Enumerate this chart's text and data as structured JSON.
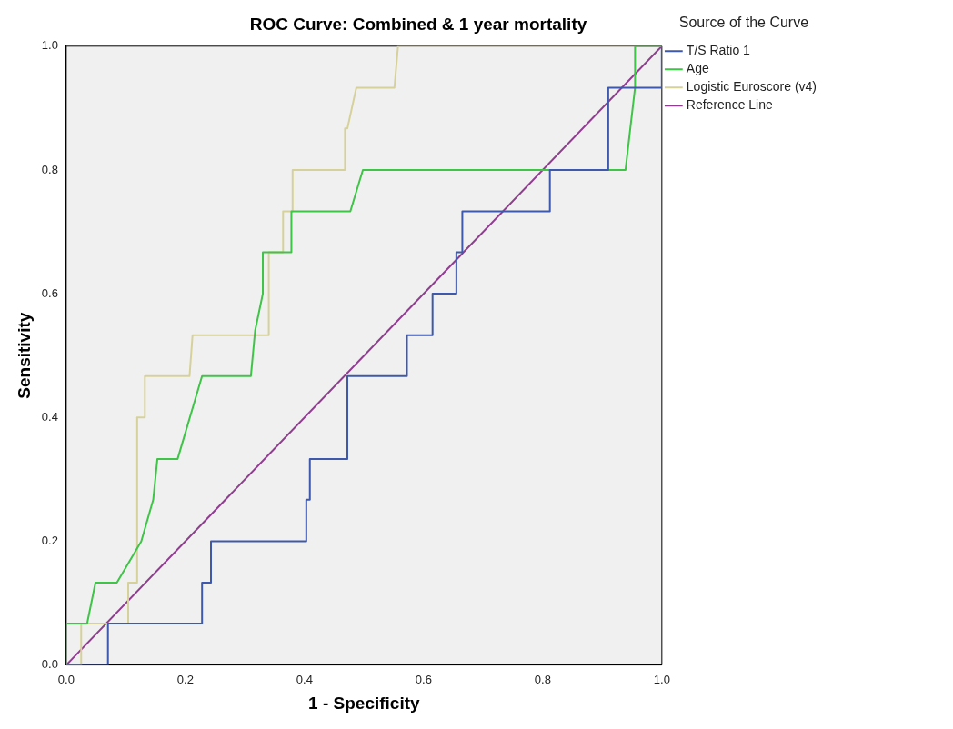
{
  "chart_data": {
    "type": "line",
    "title": "ROC Curve: Combined & 1 year mortality",
    "xlabel": "1 - Specificity",
    "ylabel": "Sensitivity",
    "legend_title": "Source of the Curve",
    "legend": "right",
    "marker": "none",
    "grid": false,
    "xlim": [
      0,
      1
    ],
    "ylim": [
      0,
      1
    ],
    "xticks": [
      {
        "value": 0,
        "label": "0.0"
      },
      {
        "value": 0.2,
        "label": "0.2"
      },
      {
        "value": 0.4,
        "label": "0.4"
      },
      {
        "value": 0.6,
        "label": "0.6"
      },
      {
        "value": 0.8,
        "label": "0.8"
      },
      {
        "value": 1,
        "label": "1.0"
      }
    ],
    "yticks": [
      {
        "value": 0,
        "label": "0.0"
      },
      {
        "value": 0.2,
        "label": "0.2"
      },
      {
        "value": 0.4,
        "label": "0.4"
      },
      {
        "value": 0.6,
        "label": "0.6"
      },
      {
        "value": 0.8,
        "label": "0.8"
      },
      {
        "value": 1,
        "label": "1.0"
      }
    ],
    "series": [
      {
        "name": "T/S Ratio 1",
        "color": "#3e58ac",
        "x": [
          0,
          0.07,
          0.07,
          0.228,
          0.228,
          0.243,
          0.243,
          0.403,
          0.403,
          0.409,
          0.409,
          0.472,
          0.472,
          0.572,
          0.572,
          0.615,
          0.615,
          0.655,
          0.655,
          0.665,
          0.665,
          0.812,
          0.812,
          0.91,
          0.91,
          1,
          1
        ],
        "values": [
          0,
          0,
          0.067,
          0.067,
          0.133,
          0.133,
          0.2,
          0.2,
          0.267,
          0.267,
          0.333,
          0.333,
          0.467,
          0.467,
          0.533,
          0.533,
          0.6,
          0.6,
          0.667,
          0.667,
          0.733,
          0.733,
          0.8,
          0.8,
          0.933,
          0.933,
          1
        ]
      },
      {
        "name": "Age",
        "color": "#3ec446",
        "x": [
          0,
          0,
          0.035,
          0.049,
          0.085,
          0.126,
          0.146,
          0.153,
          0.187,
          0.228,
          0.31,
          0.317,
          0.33,
          0.33,
          0.378,
          0.378,
          0.477,
          0.498,
          0.939,
          0.947,
          0.955,
          0.955,
          1
        ],
        "values": [
          0,
          0.067,
          0.067,
          0.133,
          0.133,
          0.2,
          0.267,
          0.333,
          0.333,
          0.467,
          0.467,
          0.54,
          0.6,
          0.667,
          0.667,
          0.733,
          0.733,
          0.8,
          0.8,
          0.867,
          0.933,
          1,
          1
        ]
      },
      {
        "name": "Logistic Euroscore (v4)",
        "color": "#d6d19a",
        "x": [
          0,
          0.025,
          0.025,
          0.104,
          0.104,
          0.119,
          0.119,
          0.132,
          0.132,
          0.207,
          0.212,
          0.34,
          0.34,
          0.364,
          0.364,
          0.38,
          0.38,
          0.468,
          0.468,
          0.472,
          0.487,
          0.551,
          0.557,
          1
        ],
        "values": [
          0,
          0,
          0.067,
          0.067,
          0.133,
          0.133,
          0.4,
          0.4,
          0.467,
          0.467,
          0.533,
          0.533,
          0.667,
          0.667,
          0.733,
          0.733,
          0.8,
          0.8,
          0.867,
          0.867,
          0.933,
          0.933,
          1,
          1
        ]
      },
      {
        "name": "Reference Line",
        "color": "#8f3e8f",
        "x": [
          0,
          1
        ],
        "values": [
          0,
          1
        ]
      }
    ]
  }
}
